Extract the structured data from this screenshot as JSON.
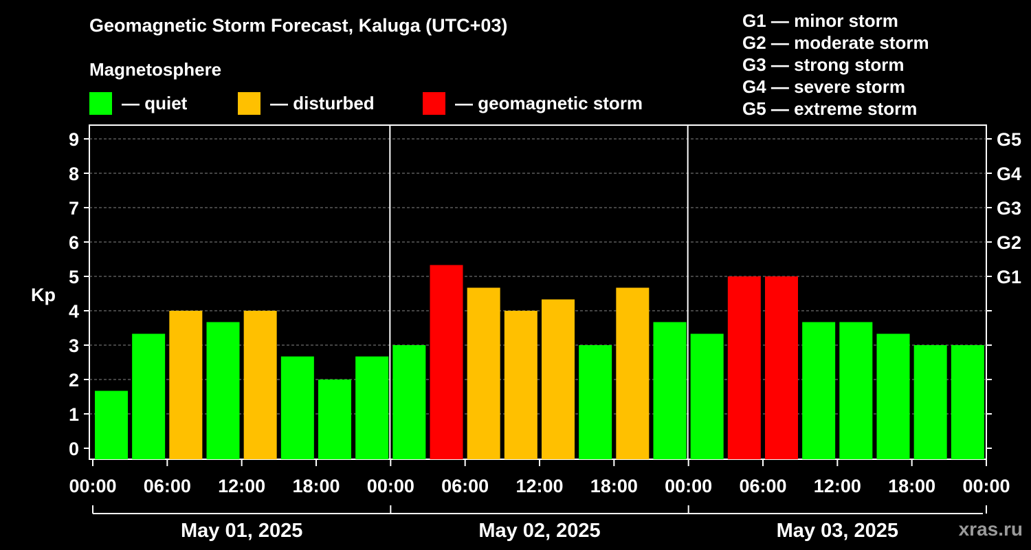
{
  "header": {
    "title": "Geomagnetic Storm Forecast, Kaluga (UTC+03)",
    "section_label": "Magnetosphere"
  },
  "legend": [
    {
      "label": "— quiet",
      "color": "#00ff00"
    },
    {
      "label": "— disturbed",
      "color": "#ffc000"
    },
    {
      "label": "— geomagnetic storm",
      "color": "#ff0000"
    }
  ],
  "g_scale_legend": [
    "G1 — minor storm",
    "G2 — moderate storm",
    "G3 — strong storm",
    "G4 — severe storm",
    "G5 — extreme storm"
  ],
  "chart_data": {
    "type": "bar",
    "title": "Geomagnetic Storm Forecast, Kaluga (UTC+03)",
    "ylabel": "Kp",
    "ylim": [
      0,
      9
    ],
    "y_ticks": [
      "0",
      "1",
      "2",
      "3",
      "4",
      "5",
      "6",
      "7",
      "8",
      "9"
    ],
    "right_axis": [
      {
        "kp": 5,
        "label": "G1"
      },
      {
        "kp": 6,
        "label": "G2"
      },
      {
        "kp": 7,
        "label": "G3"
      },
      {
        "kp": 8,
        "label": "G4"
      },
      {
        "kp": 9,
        "label": "G5"
      }
    ],
    "x_tick_labels": [
      "00:00",
      "06:00",
      "12:00",
      "18:00",
      "00:00",
      "06:00",
      "12:00",
      "18:00",
      "00:00",
      "06:00",
      "12:00",
      "18:00",
      "00:00"
    ],
    "days": [
      "May 01, 2025",
      "May 02, 2025",
      "May 03, 2025"
    ],
    "interval_hours": 3,
    "values": [
      1.67,
      3.33,
      4.0,
      3.67,
      4.0,
      2.67,
      2.0,
      2.67,
      3.0,
      5.33,
      4.67,
      4.0,
      4.33,
      3.0,
      4.67,
      3.67,
      3.33,
      5.0,
      5.0,
      3.67,
      3.67,
      3.33,
      3.0,
      3.0
    ],
    "status": [
      "quiet",
      "quiet",
      "disturbed",
      "quiet",
      "disturbed",
      "quiet",
      "quiet",
      "quiet",
      "quiet",
      "storm",
      "disturbed",
      "disturbed",
      "disturbed",
      "quiet",
      "disturbed",
      "quiet",
      "quiet",
      "storm",
      "storm",
      "quiet",
      "quiet",
      "quiet",
      "quiet",
      "quiet"
    ],
    "colors": {
      "quiet": "#00ff00",
      "disturbed": "#ffc000",
      "storm": "#ff0000"
    },
    "grid": "dashed horizontal"
  },
  "watermark": "xras.ru"
}
